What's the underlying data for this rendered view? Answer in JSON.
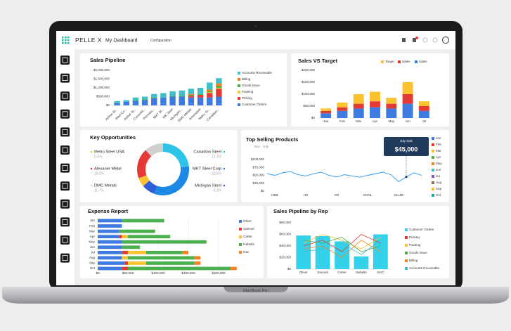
{
  "device": {
    "label": "MacBook Pro"
  },
  "header": {
    "brand": "PELLE X",
    "title": "My Dashboard",
    "menu": "Configuration"
  },
  "chart_data": [
    {
      "type": "stacked_bar",
      "title": "Sales Pipeline",
      "categories": [
        "Airline St...",
        "Steel Co...",
        "Airline St...",
        "Consolid...",
        "Permian...",
        "MKT St...",
        "MK Steel",
        "Michigan...",
        "DMC Metals",
        "Ameristeel",
        "Metro St...",
        "Canadian..."
      ],
      "series": [
        {
          "name": "Accounts Receivable",
          "color": "#3fbfc7",
          "values": [
            80000,
            100000,
            150000,
            150000,
            200000,
            250000,
            250000,
            300000,
            300000,
            350000,
            400000,
            300000
          ]
        },
        {
          "name": "Billing",
          "color": "#f58220",
          "values": [
            0,
            0,
            0,
            0,
            0,
            0,
            0,
            0,
            50000,
            0,
            100000,
            150000
          ]
        },
        {
          "name": "Goods Issue",
          "color": "#4caf50",
          "values": [
            20000,
            0,
            30000,
            50000,
            50000,
            0,
            50000,
            50000,
            50000,
            50000,
            50000,
            100000
          ]
        },
        {
          "name": "Packing",
          "color": "#f9c22e",
          "values": [
            0,
            0,
            0,
            0,
            0,
            0,
            0,
            0,
            0,
            0,
            50000,
            50000
          ]
        },
        {
          "name": "Picking",
          "color": "#e53935",
          "values": [
            0,
            0,
            0,
            0,
            0,
            0,
            0,
            0,
            100000,
            150000,
            250000,
            450000
          ]
        },
        {
          "name": "Customer Orders",
          "color": "#3d7be0",
          "values": [
            150000,
            200000,
            270000,
            300000,
            400000,
            450000,
            500000,
            500000,
            450000,
            450000,
            450000,
            500000
          ]
        }
      ],
      "ylim": [
        0,
        2000000
      ],
      "yticks": [
        {
          "value": 0,
          "label": "$0"
        },
        {
          "value": 500000,
          "label": "$500,000"
        },
        {
          "value": 1000000,
          "label": "$1,000,000"
        },
        {
          "value": 1500000,
          "label": "$1,500,000"
        },
        {
          "value": 2000000,
          "label": "$2,000,000"
        }
      ],
      "grid": false,
      "legend": "right"
    },
    {
      "type": "stacked_bar",
      "title": "Sales VS  Target",
      "categories": [
        "Jan",
        "Feb",
        "Mar",
        "Apr",
        "May",
        "Jun",
        "Jul"
      ],
      "series": [
        {
          "name": "Target",
          "color": "#f9c22e",
          "values": [
            10000,
            20000,
            40000,
            40000,
            25000,
            50000,
            20000
          ]
        },
        {
          "name": "Sales",
          "color": "#e53935",
          "values": [
            10000,
            15000,
            20000,
            25000,
            20000,
            40000,
            20000
          ]
        },
        {
          "name": "Sales",
          "color": "#3d7be0",
          "values": [
            20000,
            30000,
            40000,
            45000,
            40000,
            60000,
            30000
          ]
        }
      ],
      "ylim": [
        0,
        200000
      ],
      "yticks": [
        {
          "value": 0,
          "label": "$0"
        },
        {
          "value": 50000,
          "label": "$50,000"
        },
        {
          "value": 100000,
          "label": "$100,000"
        },
        {
          "value": 150000,
          "label": "$150,000"
        },
        {
          "value": 200000,
          "label": "$200,000"
        }
      ],
      "grid": false,
      "legend": "top"
    },
    {
      "type": "donut",
      "title": "Key Opportunities",
      "categories": [
        "Metro Steel USA",
        "Alexaner Metal",
        "DMC Metals",
        "Canadian Steel",
        "MKT Steel Corp",
        "Michigan Steel"
      ],
      "values": [
        5.6,
        18.8,
        11.7,
        23.1,
        32.5,
        8.3
      ],
      "value_labels": [
        "5.6%",
        "18.8%",
        "11.7%",
        "23.1%",
        "32.5%",
        "8.3%"
      ],
      "colors": [
        "#f9c22e",
        "#e53935",
        "#cfcfcf",
        "#2ec4e8",
        "#1e88e5",
        "#2e5fd8"
      ]
    },
    {
      "type": "line",
      "title": "Top Selling Products",
      "subtitle": "Nov - July",
      "categories": [
        null,
        "HDB",
        null,
        null,
        null,
        "HR",
        null,
        null,
        null,
        "CR",
        null,
        null,
        null,
        "GVNL",
        null,
        null,
        null,
        "GLUM",
        null,
        null,
        null
      ],
      "values": [
        55000,
        50000,
        58000,
        62000,
        52000,
        48000,
        55000,
        60000,
        50000,
        45000,
        52000,
        48000,
        44000,
        50000,
        55000,
        60000,
        52000,
        30000,
        45000,
        58000,
        50000
      ],
      "color": "#2196f3",
      "ylim": [
        0,
        100000
      ],
      "yticks": [
        {
          "value": 0,
          "label": "$0"
        },
        {
          "value": 25000,
          "label": "$25,000"
        },
        {
          "value": 50000,
          "label": "$50,000"
        },
        {
          "value": 75000,
          "label": "$75,000"
        },
        {
          "value": 100000,
          "label": "$100,000"
        }
      ],
      "grid": false,
      "annotation": {
        "title": "July Sale",
        "text": "$45,000"
      },
      "legend": "right",
      "legend_items": [
        {
          "name": "Jan",
          "color": "#3d7be0"
        },
        {
          "name": "Feb",
          "color": "#e53935"
        },
        {
          "name": "Mar",
          "color": "#f9c22e"
        },
        {
          "name": "Apr",
          "color": "#4caf50"
        },
        {
          "name": "May",
          "color": "#f58220"
        },
        {
          "name": "Jun",
          "color": "#3fbfc7"
        },
        {
          "name": "Jul",
          "color": "#7e57c2"
        },
        {
          "name": "Aug",
          "color": "#8d6e63"
        },
        {
          "name": "Sep",
          "color": "#f9c22e"
        },
        {
          "name": "Oct",
          "color": "#26a69a"
        }
      ]
    },
    {
      "type": "stacked_barh",
      "title": "Expense Report",
      "categories": [
        "Jan",
        "Feb",
        "Mar",
        "Apr",
        "May",
        "Jun",
        "Jul",
        "Aug",
        "Sep",
        "Oct"
      ],
      "series": [
        {
          "name": "Oliver",
          "color": "#3d7be0",
          "values": [
            40000,
            40000,
            35000,
            35000,
            40000,
            40000,
            40000,
            40000,
            45000,
            40000
          ]
        },
        {
          "name": "Samuel",
          "color": "#e53935",
          "values": [
            0,
            0,
            0,
            5000,
            0,
            0,
            10000,
            0,
            5000,
            10000
          ]
        },
        {
          "name": "Carter",
          "color": "#f9c22e",
          "values": [
            0,
            0,
            0,
            10000,
            0,
            0,
            30000,
            10000,
            30000,
            0
          ]
        },
        {
          "name": "Isabella",
          "color": "#4caf50",
          "values": [
            70000,
            0,
            60000,
            70000,
            140000,
            30000,
            60000,
            110000,
            80000,
            170000
          ]
        },
        {
          "name": "Isac",
          "color": "#f58220",
          "values": [
            0,
            0,
            0,
            0,
            0,
            0,
            10000,
            10000,
            10000,
            10000
          ]
        }
      ],
      "xlim": [
        0,
        250000
      ],
      "xticks": [
        {
          "value": 0,
          "label": "$0"
        },
        {
          "value": 50000,
          "label": "$50,000"
        },
        {
          "value": 100000,
          "label": "$100,000"
        },
        {
          "value": 150000,
          "label": "$150,000"
        },
        {
          "value": 200000,
          "label": "$200,000"
        }
      ],
      "grid": true,
      "legend": "right"
    },
    {
      "type": "bar_line",
      "title": "Sales Pipeline by Rep",
      "categories": [
        "Oliver",
        "Samuel",
        "Carter",
        "Isabella",
        "ISAC"
      ],
      "series": [
        {
          "name": "Customer Orders",
          "color": "#33d1ea",
          "kind": "bar",
          "values": [
            58000,
            57000,
            48000,
            22000,
            60000
          ]
        },
        {
          "name": "Picking",
          "color": "#e53935",
          "kind": "line",
          "values": [
            40000,
            50000,
            30000,
            60000,
            45000
          ]
        },
        {
          "name": "Packing",
          "color": "#f9c22e",
          "kind": "line",
          "values": [
            45000,
            60000,
            50000,
            35000,
            55000
          ]
        },
        {
          "name": "Goods Issue",
          "color": "#4caf50",
          "kind": "line",
          "values": [
            50000,
            45000,
            55000,
            30000,
            40000
          ]
        },
        {
          "name": "Billing",
          "color": "#f58220",
          "kind": "line",
          "values": [
            35000,
            40000,
            20000,
            50000,
            30000
          ]
        },
        {
          "name": "Accounts Receivable",
          "color": "#3fbfc7",
          "kind": "line",
          "values": [
            30000,
            35000,
            45000,
            25000,
            50000
          ]
        }
      ],
      "ylim": [
        0,
        80000
      ],
      "yticks": [
        {
          "value": 0,
          "label": "$0"
        },
        {
          "value": 20000,
          "label": "$20,000"
        },
        {
          "value": 40000,
          "label": "$40,000"
        },
        {
          "value": 60000,
          "label": "$60,000"
        },
        {
          "value": 80000,
          "label": "$80,000"
        }
      ],
      "grid": false,
      "legend": "right"
    }
  ]
}
